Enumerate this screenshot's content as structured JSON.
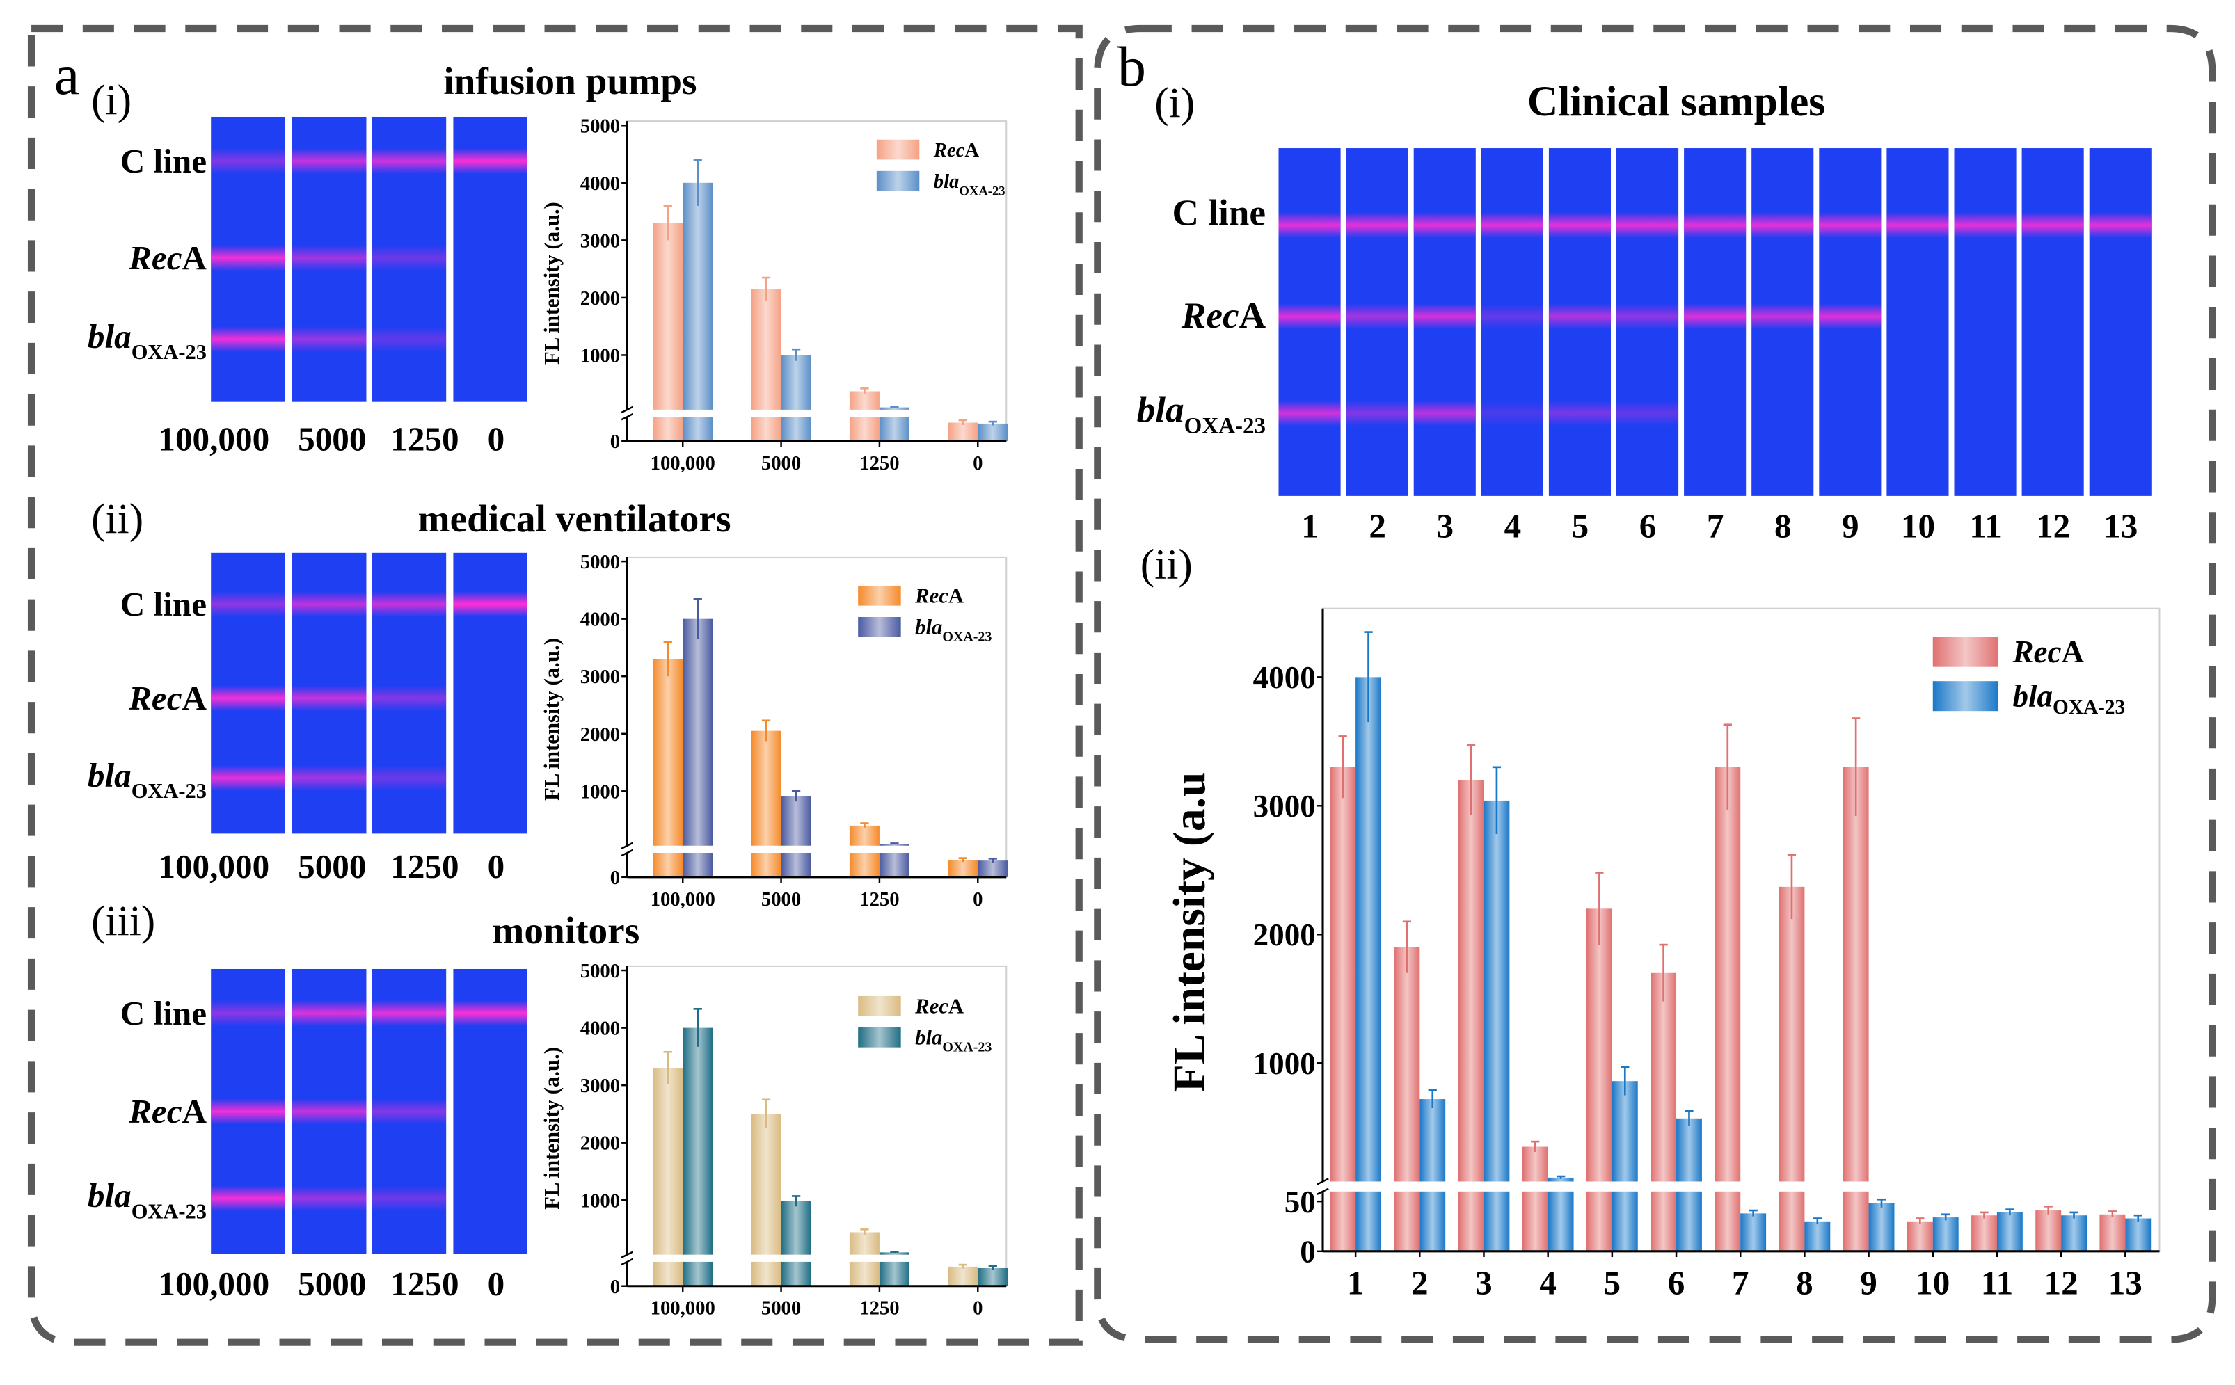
{
  "panel_a": {
    "letter": "a",
    "line_labels": {
      "c_line": "C line",
      "rec_italic": "Rec",
      "rec_normal": "A",
      "bla_italic": "bla",
      "bla_sub": "OXA-23"
    },
    "sub_panels": [
      {
        "roman": "(i)",
        "title": "infusion pumps",
        "concentrations": [
          "100,000",
          "5000",
          "1250",
          "0"
        ],
        "strips": [
          {
            "c": 0.45,
            "rec": 0.95,
            "bla": 0.95
          },
          {
            "c": 0.75,
            "rec": 0.6,
            "bla": 0.55
          },
          {
            "c": 0.8,
            "rec": 0.35,
            "bla": 0.3
          },
          {
            "c": 1.0,
            "rec": 0,
            "bla": 0
          }
        ]
      },
      {
        "roman": "(ii)",
        "title": "medical ventilators",
        "concentrations": [
          "100,000",
          "5000",
          "1250",
          "0"
        ],
        "strips": [
          {
            "c": 0.5,
            "rec": 0.95,
            "bla": 0.9
          },
          {
            "c": 0.7,
            "rec": 0.75,
            "bla": 0.6
          },
          {
            "c": 0.75,
            "rec": 0.45,
            "bla": 0.35
          },
          {
            "c": 1.0,
            "rec": 0,
            "bla": 0
          }
        ]
      },
      {
        "roman": "(iii)",
        "title": "monitors",
        "concentrations": [
          "100,000",
          "5000",
          "1250",
          "0"
        ],
        "strips": [
          {
            "c": 0.5,
            "rec": 0.95,
            "bla": 0.95
          },
          {
            "c": 0.85,
            "rec": 0.75,
            "bla": 0.55
          },
          {
            "c": 0.9,
            "rec": 0.45,
            "bla": 0.35
          },
          {
            "c": 1.0,
            "rec": 0,
            "bla": 0
          }
        ]
      }
    ]
  },
  "panel_b": {
    "letter": "b",
    "roman_i": "(i)",
    "roman_ii": "(ii)",
    "title": "Clinical samples",
    "line_labels": {
      "c_line": "C line",
      "rec_italic": "Rec",
      "rec_normal": "A",
      "bla_italic": "bla",
      "bla_sub": "OXA-23"
    },
    "sample_numbers": [
      "1",
      "2",
      "3",
      "4",
      "5",
      "6",
      "7",
      "8",
      "9",
      "10",
      "11",
      "12",
      "13"
    ],
    "strips": [
      {
        "c": 0.9,
        "rec": 0.85,
        "bla": 0.8
      },
      {
        "c": 0.9,
        "rec": 0.6,
        "bla": 0.45
      },
      {
        "c": 0.9,
        "rec": 0.8,
        "bla": 0.7
      },
      {
        "c": 0.9,
        "rec": 0.3,
        "bla": 0.2
      },
      {
        "c": 0.9,
        "rec": 0.65,
        "bla": 0.4
      },
      {
        "c": 0.9,
        "rec": 0.5,
        "bla": 0.3
      },
      {
        "c": 0.9,
        "rec": 0.85,
        "bla": 0
      },
      {
        "c": 0.9,
        "rec": 0.75,
        "bla": 0
      },
      {
        "c": 0.9,
        "rec": 0.85,
        "bla": 0
      },
      {
        "c": 0.9,
        "rec": 0,
        "bla": 0
      },
      {
        "c": 0.9,
        "rec": 0,
        "bla": 0
      },
      {
        "c": 0.9,
        "rec": 0,
        "bla": 0
      },
      {
        "c": 0.9,
        "rec": 0,
        "bla": 0
      }
    ]
  },
  "colors": {
    "strip_blue": "#1f3ff2",
    "band_magenta": "#ff2fd6",
    "frame_dash": "#5a5a5a"
  },
  "chart_data": [
    {
      "type": "bar",
      "panel": "a(i)",
      "ylabel": "FL intensity (a.u.)",
      "broken_axis": true,
      "ylim_lower": [
        0,
        50
      ],
      "ylim_upper": [
        50,
        5000
      ],
      "yticks": [
        0,
        1000,
        2000,
        3000,
        4000,
        5000
      ],
      "categories": [
        "100,000",
        "5000",
        "1250",
        "0"
      ],
      "series": [
        {
          "name_italic": "Rec",
          "name_normal": "A",
          "color": "#f5a184",
          "values": [
            3300,
            2150,
            370,
            38
          ],
          "errors": [
            300,
            200,
            50,
            5
          ]
        },
        {
          "name_italic": "bla",
          "name_sub": "OXA-23",
          "color": "#5b8fc7",
          "values": [
            4000,
            1000,
            90,
            36
          ],
          "errors": [
            400,
            100,
            10,
            4
          ]
        }
      ]
    },
    {
      "type": "bar",
      "panel": "a(ii)",
      "ylabel": "FL intensity (a.u.)",
      "broken_axis": true,
      "ylim_lower": [
        0,
        50
      ],
      "ylim_upper": [
        50,
        5000
      ],
      "yticks": [
        0,
        1000,
        2000,
        3000,
        4000,
        5000
      ],
      "categories": [
        "100,000",
        "5000",
        "1250",
        "0"
      ],
      "series": [
        {
          "name_italic": "Rec",
          "name_normal": "A",
          "color": "#f58a2a",
          "values": [
            3300,
            2050,
            400,
            35
          ],
          "errors": [
            300,
            180,
            40,
            4
          ]
        },
        {
          "name_italic": "bla",
          "name_sub": "OXA-23",
          "color": "#4a5aa0",
          "values": [
            4000,
            910,
            80,
            34
          ],
          "errors": [
            350,
            90,
            10,
            4
          ]
        }
      ]
    },
    {
      "type": "bar",
      "panel": "a(iii)",
      "ylabel": "FL intensity (a.u.)",
      "broken_axis": true,
      "ylim_lower": [
        0,
        50
      ],
      "ylim_upper": [
        50,
        5000
      ],
      "yticks": [
        0,
        1000,
        2000,
        3000,
        4000,
        5000
      ],
      "categories": [
        "100,000",
        "5000",
        "1250",
        "0"
      ],
      "series": [
        {
          "name_italic": "Rec",
          "name_normal": "A",
          "color": "#d9bb82",
          "values": [
            3300,
            2500,
            440,
            40
          ],
          "errors": [
            280,
            250,
            50,
            4
          ]
        },
        {
          "name_italic": "bla",
          "name_sub": "OXA-23",
          "color": "#1f6e85",
          "values": [
            4000,
            980,
            90,
            37
          ],
          "errors": [
            330,
            90,
            10,
            4
          ]
        }
      ]
    },
    {
      "type": "bar",
      "panel": "b(ii)",
      "ylabel": "FL intensity (a.u",
      "broken_axis": true,
      "ylim_lower": [
        0,
        60
      ],
      "ylim_upper": [
        80,
        4500
      ],
      "yticks": [
        0,
        50,
        1000,
        2000,
        3000,
        4000
      ],
      "categories": [
        "1",
        "2",
        "3",
        "4",
        "5",
        "6",
        "7",
        "8",
        "9",
        "10",
        "11",
        "12",
        "13"
      ],
      "series": [
        {
          "name_italic": "Rec",
          "name_normal": "A",
          "color": "#e07070",
          "values": [
            3300,
            1900,
            3200,
            350,
            2200,
            1700,
            3300,
            2370,
            3300,
            30,
            36,
            41,
            37
          ],
          "errors": [
            240,
            200,
            270,
            40,
            280,
            220,
            330,
            250,
            380,
            3,
            3,
            4,
            3
          ]
        },
        {
          "name_italic": "bla",
          "name_sub": "OXA-23",
          "color": "#1a78c8",
          "values": [
            4000,
            720,
            3040,
            110,
            860,
            570,
            38,
            30,
            48,
            34,
            39,
            36,
            33
          ],
          "errors": [
            350,
            70,
            260,
            10,
            110,
            60,
            3,
            3,
            4,
            3,
            3,
            3,
            3
          ]
        }
      ]
    }
  ]
}
